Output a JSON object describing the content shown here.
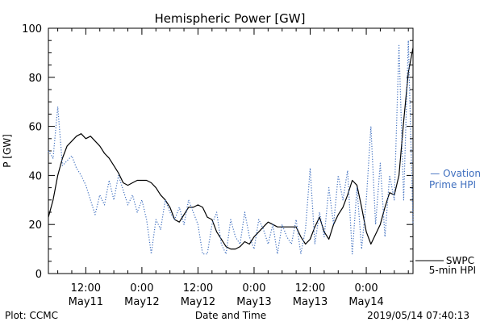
{
  "chart_data": {
    "type": "line",
    "title": "Hemispheric Power [GW]",
    "xlabel": "Date and Time",
    "ylabel": "P [GW]",
    "ylim": [
      0,
      100
    ],
    "yticks": [
      0,
      20,
      40,
      60,
      80,
      100
    ],
    "xlim": [
      "2019-05-11 04:00",
      "2019-05-14 10:00"
    ],
    "xticks": [
      {
        "at": "2019-05-11 12:00",
        "time": "12:00",
        "date": "May11"
      },
      {
        "at": "2019-05-12 00:00",
        "time": "0:00",
        "date": "May12"
      },
      {
        "at": "2019-05-12 12:00",
        "time": "12:00",
        "date": "May12"
      },
      {
        "at": "2019-05-13 00:00",
        "time": "0:00",
        "date": "May13"
      },
      {
        "at": "2019-05-13 12:00",
        "time": "12:00",
        "date": "May13"
      },
      {
        "at": "2019-05-14 00:00",
        "time": "0:00",
        "date": "May14"
      }
    ],
    "legend_placement": "right",
    "series": [
      {
        "name": "SWPC 5-min HPI",
        "legend_lines": [
          "SWPC",
          "5-min HPI"
        ],
        "color": "#000000",
        "style": "solid",
        "points": [
          [
            "2019-05-11 04:00",
            23
          ],
          [
            "2019-05-11 05:00",
            30
          ],
          [
            "2019-05-11 06:00",
            40
          ],
          [
            "2019-05-11 07:00",
            47
          ],
          [
            "2019-05-11 08:00",
            52
          ],
          [
            "2019-05-11 10:00",
            56
          ],
          [
            "2019-05-11 11:00",
            57
          ],
          [
            "2019-05-11 12:00",
            55
          ],
          [
            "2019-05-11 13:00",
            56
          ],
          [
            "2019-05-11 14:00",
            54
          ],
          [
            "2019-05-11 15:00",
            52
          ],
          [
            "2019-05-11 16:00",
            49
          ],
          [
            "2019-05-11 17:00",
            47
          ],
          [
            "2019-05-11 18:00",
            44
          ],
          [
            "2019-05-11 19:00",
            41
          ],
          [
            "2019-05-11 20:00",
            37
          ],
          [
            "2019-05-11 21:00",
            36
          ],
          [
            "2019-05-11 22:00",
            37
          ],
          [
            "2019-05-11 23:00",
            38
          ],
          [
            "2019-05-12 00:00",
            38
          ],
          [
            "2019-05-12 01:00",
            38
          ],
          [
            "2019-05-12 02:00",
            37
          ],
          [
            "2019-05-12 03:00",
            35
          ],
          [
            "2019-05-12 04:00",
            32
          ],
          [
            "2019-05-12 05:00",
            30
          ],
          [
            "2019-05-12 06:00",
            27
          ],
          [
            "2019-05-12 07:00",
            22
          ],
          [
            "2019-05-12 08:00",
            21
          ],
          [
            "2019-05-12 09:00",
            24
          ],
          [
            "2019-05-12 10:00",
            27
          ],
          [
            "2019-05-12 11:00",
            27
          ],
          [
            "2019-05-12 12:00",
            28
          ],
          [
            "2019-05-12 13:00",
            27
          ],
          [
            "2019-05-12 14:00",
            23
          ],
          [
            "2019-05-12 15:00",
            22
          ],
          [
            "2019-05-12 16:00",
            17
          ],
          [
            "2019-05-12 17:00",
            14
          ],
          [
            "2019-05-12 18:00",
            11
          ],
          [
            "2019-05-12 19:00",
            10
          ],
          [
            "2019-05-12 20:00",
            10
          ],
          [
            "2019-05-12 21:00",
            11
          ],
          [
            "2019-05-12 22:00",
            13
          ],
          [
            "2019-05-12 23:00",
            12
          ],
          [
            "2019-05-13 00:00",
            15
          ],
          [
            "2019-05-13 01:00",
            17
          ],
          [
            "2019-05-13 02:00",
            19
          ],
          [
            "2019-05-13 03:00",
            21
          ],
          [
            "2019-05-13 04:00",
            20
          ],
          [
            "2019-05-13 05:00",
            19
          ],
          [
            "2019-05-13 06:00",
            19
          ],
          [
            "2019-05-13 07:00",
            19
          ],
          [
            "2019-05-13 08:00",
            19
          ],
          [
            "2019-05-13 09:00",
            19
          ],
          [
            "2019-05-13 10:00",
            15
          ],
          [
            "2019-05-13 11:00",
            12
          ],
          [
            "2019-05-13 12:00",
            14
          ],
          [
            "2019-05-13 13:00",
            19
          ],
          [
            "2019-05-13 14:00",
            23
          ],
          [
            "2019-05-13 15:00",
            17
          ],
          [
            "2019-05-13 16:00",
            14
          ],
          [
            "2019-05-13 17:00",
            20
          ],
          [
            "2019-05-13 18:00",
            24
          ],
          [
            "2019-05-13 19:00",
            27
          ],
          [
            "2019-05-13 20:00",
            32
          ],
          [
            "2019-05-13 21:00",
            38
          ],
          [
            "2019-05-13 22:00",
            36
          ],
          [
            "2019-05-13 23:00",
            27
          ],
          [
            "2019-05-14 00:00",
            17
          ],
          [
            "2019-05-14 01:00",
            12
          ],
          [
            "2019-05-14 02:00",
            16
          ],
          [
            "2019-05-14 03:00",
            20
          ],
          [
            "2019-05-14 04:00",
            27
          ],
          [
            "2019-05-14 05:00",
            33
          ],
          [
            "2019-05-14 06:00",
            32
          ],
          [
            "2019-05-14 07:00",
            40
          ],
          [
            "2019-05-14 08:00",
            62
          ],
          [
            "2019-05-14 09:00",
            82
          ],
          [
            "2019-05-14 10:00",
            92
          ]
        ]
      },
      {
        "name": "Ovation Prime HPI",
        "legend_lines": [
          "— Ovation",
          "Prime HPI"
        ],
        "color": "#3f6fbf",
        "style": "dotted",
        "points": [
          [
            "2019-05-11 04:00",
            50
          ],
          [
            "2019-05-11 05:00",
            47
          ],
          [
            "2019-05-11 06:00",
            68
          ],
          [
            "2019-05-11 07:00",
            44
          ],
          [
            "2019-05-11 08:00",
            46
          ],
          [
            "2019-05-11 09:00",
            48
          ],
          [
            "2019-05-11 10:00",
            43
          ],
          [
            "2019-05-11 11:00",
            40
          ],
          [
            "2019-05-11 12:00",
            36
          ],
          [
            "2019-05-11 13:00",
            30
          ],
          [
            "2019-05-11 14:00",
            24
          ],
          [
            "2019-05-11 15:00",
            32
          ],
          [
            "2019-05-11 16:00",
            28
          ],
          [
            "2019-05-11 17:00",
            38
          ],
          [
            "2019-05-11 18:00",
            30
          ],
          [
            "2019-05-11 19:00",
            40
          ],
          [
            "2019-05-11 20:00",
            34
          ],
          [
            "2019-05-11 21:00",
            28
          ],
          [
            "2019-05-11 22:00",
            32
          ],
          [
            "2019-05-11 23:00",
            25
          ],
          [
            "2019-05-12 00:00",
            30
          ],
          [
            "2019-05-12 01:00",
            22
          ],
          [
            "2019-05-12 02:00",
            8
          ],
          [
            "2019-05-12 03:00",
            22
          ],
          [
            "2019-05-12 04:00",
            18
          ],
          [
            "2019-05-12 05:00",
            30
          ],
          [
            "2019-05-12 06:00",
            25
          ],
          [
            "2019-05-12 07:00",
            22
          ],
          [
            "2019-05-12 08:00",
            27
          ],
          [
            "2019-05-12 09:00",
            20
          ],
          [
            "2019-05-12 10:00",
            30
          ],
          [
            "2019-05-12 11:00",
            25
          ],
          [
            "2019-05-12 12:00",
            20
          ],
          [
            "2019-05-12 13:00",
            8
          ],
          [
            "2019-05-12 14:00",
            8
          ],
          [
            "2019-05-12 15:00",
            20
          ],
          [
            "2019-05-12 16:00",
            25
          ],
          [
            "2019-05-12 17:00",
            12
          ],
          [
            "2019-05-12 18:00",
            8
          ],
          [
            "2019-05-12 19:00",
            22
          ],
          [
            "2019-05-12 20:00",
            15
          ],
          [
            "2019-05-12 21:00",
            12
          ],
          [
            "2019-05-12 22:00",
            25
          ],
          [
            "2019-05-12 23:00",
            15
          ],
          [
            "2019-05-13 00:00",
            10
          ],
          [
            "2019-05-13 01:00",
            22
          ],
          [
            "2019-05-13 02:00",
            18
          ],
          [
            "2019-05-13 03:00",
            12
          ],
          [
            "2019-05-13 04:00",
            20
          ],
          [
            "2019-05-13 05:00",
            8
          ],
          [
            "2019-05-13 06:00",
            20
          ],
          [
            "2019-05-13 07:00",
            15
          ],
          [
            "2019-05-13 08:00",
            12
          ],
          [
            "2019-05-13 09:00",
            22
          ],
          [
            "2019-05-13 10:00",
            8
          ],
          [
            "2019-05-13 11:00",
            18
          ],
          [
            "2019-05-13 12:00",
            43
          ],
          [
            "2019-05-13 13:00",
            12
          ],
          [
            "2019-05-13 14:00",
            25
          ],
          [
            "2019-05-13 15:00",
            15
          ],
          [
            "2019-05-13 16:00",
            35
          ],
          [
            "2019-05-13 17:00",
            20
          ],
          [
            "2019-05-13 18:00",
            40
          ],
          [
            "2019-05-13 19:00",
            30
          ],
          [
            "2019-05-13 20:00",
            42
          ],
          [
            "2019-05-13 21:00",
            8
          ],
          [
            "2019-05-13 22:00",
            35
          ],
          [
            "2019-05-13 23:00",
            10
          ],
          [
            "2019-05-14 00:00",
            30
          ],
          [
            "2019-05-14 01:00",
            60
          ],
          [
            "2019-05-14 02:00",
            20
          ],
          [
            "2019-05-14 03:00",
            45
          ],
          [
            "2019-05-14 04:00",
            15
          ],
          [
            "2019-05-14 05:00",
            40
          ],
          [
            "2019-05-14 06:00",
            30
          ],
          [
            "2019-05-14 07:00",
            93
          ],
          [
            "2019-05-14 08:00",
            30
          ],
          [
            "2019-05-14 09:00",
            95
          ],
          [
            "2019-05-14 10:00",
            20
          ]
        ]
      }
    ]
  },
  "footer": {
    "plot_credit": "Plot: CCMC",
    "timestamp": "2019/05/14 07:40:13"
  }
}
